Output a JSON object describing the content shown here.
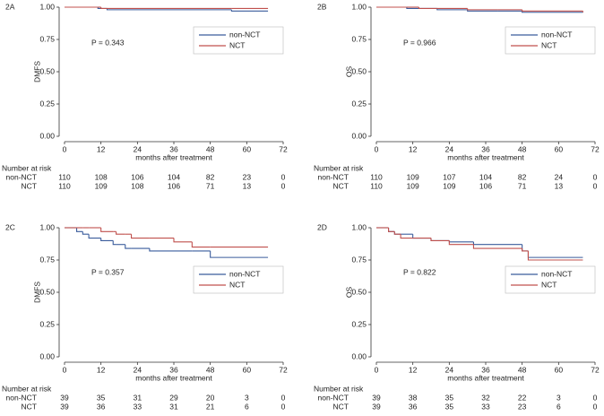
{
  "chart_data": [
    {
      "type": "step",
      "panel": "2A",
      "y_label": "DMFS",
      "x_label": "months after treatment",
      "annotation": "P = 0.343",
      "legend": "upper right",
      "x": [
        0,
        11,
        12,
        14,
        55,
        67
      ],
      "series": [
        {
          "name": "non-NCT",
          "color": "#3a5c9c",
          "values": [
            1,
            0.99,
            0.99,
            0.98,
            0.97,
            0.97
          ]
        },
        {
          "name": "NCT",
          "color": "#c0504d",
          "values": [
            1,
            1,
            0.99,
            0.99,
            0.99,
            0.99
          ]
        }
      ],
      "xlim": [
        0,
        72
      ],
      "xticks": [
        0,
        12,
        24,
        36,
        48,
        60,
        72
      ],
      "ylim": [
        0,
        1
      ],
      "yticks": [
        {
          "value": 0,
          "label": "0.00"
        },
        {
          "value": 0.25,
          "label": "0.25"
        },
        {
          "value": 0.5,
          "label": "0.50"
        },
        {
          "value": 0.75,
          "label": "0.75"
        },
        {
          "value": 1,
          "label": "1.00"
        }
      ],
      "risk_table": {
        "title": "Number at risk",
        "rows": [
          {
            "name": "non-NCT",
            "values": [
              110,
              108,
              106,
              104,
              82,
              23,
              0
            ]
          },
          {
            "name": "NCT",
            "values": [
              110,
              109,
              108,
              106,
              71,
              13,
              0
            ]
          }
        ]
      }
    },
    {
      "type": "step",
      "panel": "2B",
      "y_label": "OS",
      "x_label": "months after treatment",
      "annotation": "P = 0.966",
      "legend": "upper right",
      "x": [
        0,
        10,
        14,
        20,
        30,
        40,
        48,
        68
      ],
      "series": [
        {
          "name": "non-NCT",
          "color": "#3a5c9c",
          "values": [
            1,
            0.99,
            0.99,
            0.98,
            0.97,
            0.97,
            0.96,
            0.96
          ]
        },
        {
          "name": "NCT",
          "color": "#c0504d",
          "values": [
            1,
            1,
            0.99,
            0.99,
            0.98,
            0.98,
            0.97,
            0.96
          ]
        }
      ],
      "xlim": [
        0,
        72
      ],
      "xticks": [
        0,
        12,
        24,
        36,
        48,
        60,
        72
      ],
      "ylim": [
        0,
        1
      ],
      "yticks": [
        {
          "value": 0,
          "label": "0.00"
        },
        {
          "value": 0.25,
          "label": "0.25"
        },
        {
          "value": 0.5,
          "label": "0.50"
        },
        {
          "value": 0.75,
          "label": "0.75"
        },
        {
          "value": 1,
          "label": "1.00"
        }
      ],
      "risk_table": {
        "title": "Number at risk",
        "rows": [
          {
            "name": "non-NCT",
            "values": [
              110,
              109,
              107,
              104,
              82,
              24,
              0
            ]
          },
          {
            "name": "NCT",
            "values": [
              110,
              109,
              109,
              106,
              71,
              13,
              0
            ]
          }
        ]
      }
    },
    {
      "type": "step",
      "panel": "2C",
      "y_label": "DMFS",
      "x_label": "months after treatment",
      "annotation": "P = 0.357",
      "legend": "center right",
      "x": [
        0,
        4,
        6,
        8,
        12,
        16,
        17,
        20,
        22,
        28,
        36,
        42,
        48,
        67
      ],
      "series": [
        {
          "name": "non-NCT",
          "color": "#3a5c9c",
          "values": [
            1,
            0.97,
            0.95,
            0.92,
            0.9,
            0.87,
            0.87,
            0.84,
            0.84,
            0.82,
            0.82,
            0.82,
            0.77,
            0.77
          ]
        },
        {
          "name": "NCT",
          "color": "#c0504d",
          "values": [
            1,
            1,
            1,
            1,
            0.97,
            0.97,
            0.95,
            0.95,
            0.92,
            0.92,
            0.89,
            0.85,
            0.85,
            0.85
          ]
        }
      ],
      "xlim": [
        0,
        72
      ],
      "xticks": [
        0,
        12,
        24,
        36,
        48,
        60,
        72
      ],
      "ylim": [
        0,
        1
      ],
      "yticks": [
        {
          "value": 0,
          "label": "0.00"
        },
        {
          "value": 0.25,
          "label": "0.25"
        },
        {
          "value": 0.5,
          "label": "0.50"
        },
        {
          "value": 0.75,
          "label": "0.75"
        },
        {
          "value": 1,
          "label": "1.00"
        }
      ],
      "risk_table": {
        "title": "Number at risk",
        "rows": [
          {
            "name": "non-NCT",
            "values": [
              39,
              35,
              31,
              29,
              20,
              3,
              0
            ]
          },
          {
            "name": "NCT",
            "values": [
              39,
              36,
              33,
              31,
              21,
              6,
              0
            ]
          }
        ]
      }
    },
    {
      "type": "step",
      "panel": "2D",
      "y_label": "OS",
      "x_label": "months after treatment",
      "annotation": "P = 0.822",
      "legend": "center right",
      "x": [
        0,
        4,
        6,
        8,
        12,
        18,
        24,
        32,
        36,
        48,
        50,
        68
      ],
      "series": [
        {
          "name": "non-NCT",
          "color": "#3a5c9c",
          "values": [
            1,
            0.97,
            0.95,
            0.95,
            0.92,
            0.9,
            0.89,
            0.87,
            0.87,
            0.82,
            0.77,
            0.77
          ]
        },
        {
          "name": "NCT",
          "color": "#c0504d",
          "values": [
            1,
            0.97,
            0.95,
            0.92,
            0.92,
            0.9,
            0.87,
            0.84,
            0.84,
            0.82,
            0.75,
            0.75
          ]
        }
      ],
      "xlim": [
        0,
        72
      ],
      "xticks": [
        0,
        12,
        24,
        36,
        48,
        60,
        72
      ],
      "ylim": [
        0,
        1
      ],
      "yticks": [
        {
          "value": 0,
          "label": "0.00"
        },
        {
          "value": 0.25,
          "label": "0.25"
        },
        {
          "value": 0.5,
          "label": "0.50"
        },
        {
          "value": 0.75,
          "label": "0.75"
        },
        {
          "value": 1,
          "label": "1.00"
        }
      ],
      "risk_table": {
        "title": "Number at risk",
        "rows": [
          {
            "name": "non-NCT",
            "values": [
              39,
              38,
              35,
              32,
              22,
              3,
              0
            ]
          },
          {
            "name": "NCT",
            "values": [
              39,
              36,
              35,
              33,
              23,
              6,
              0
            ]
          }
        ]
      }
    }
  ]
}
